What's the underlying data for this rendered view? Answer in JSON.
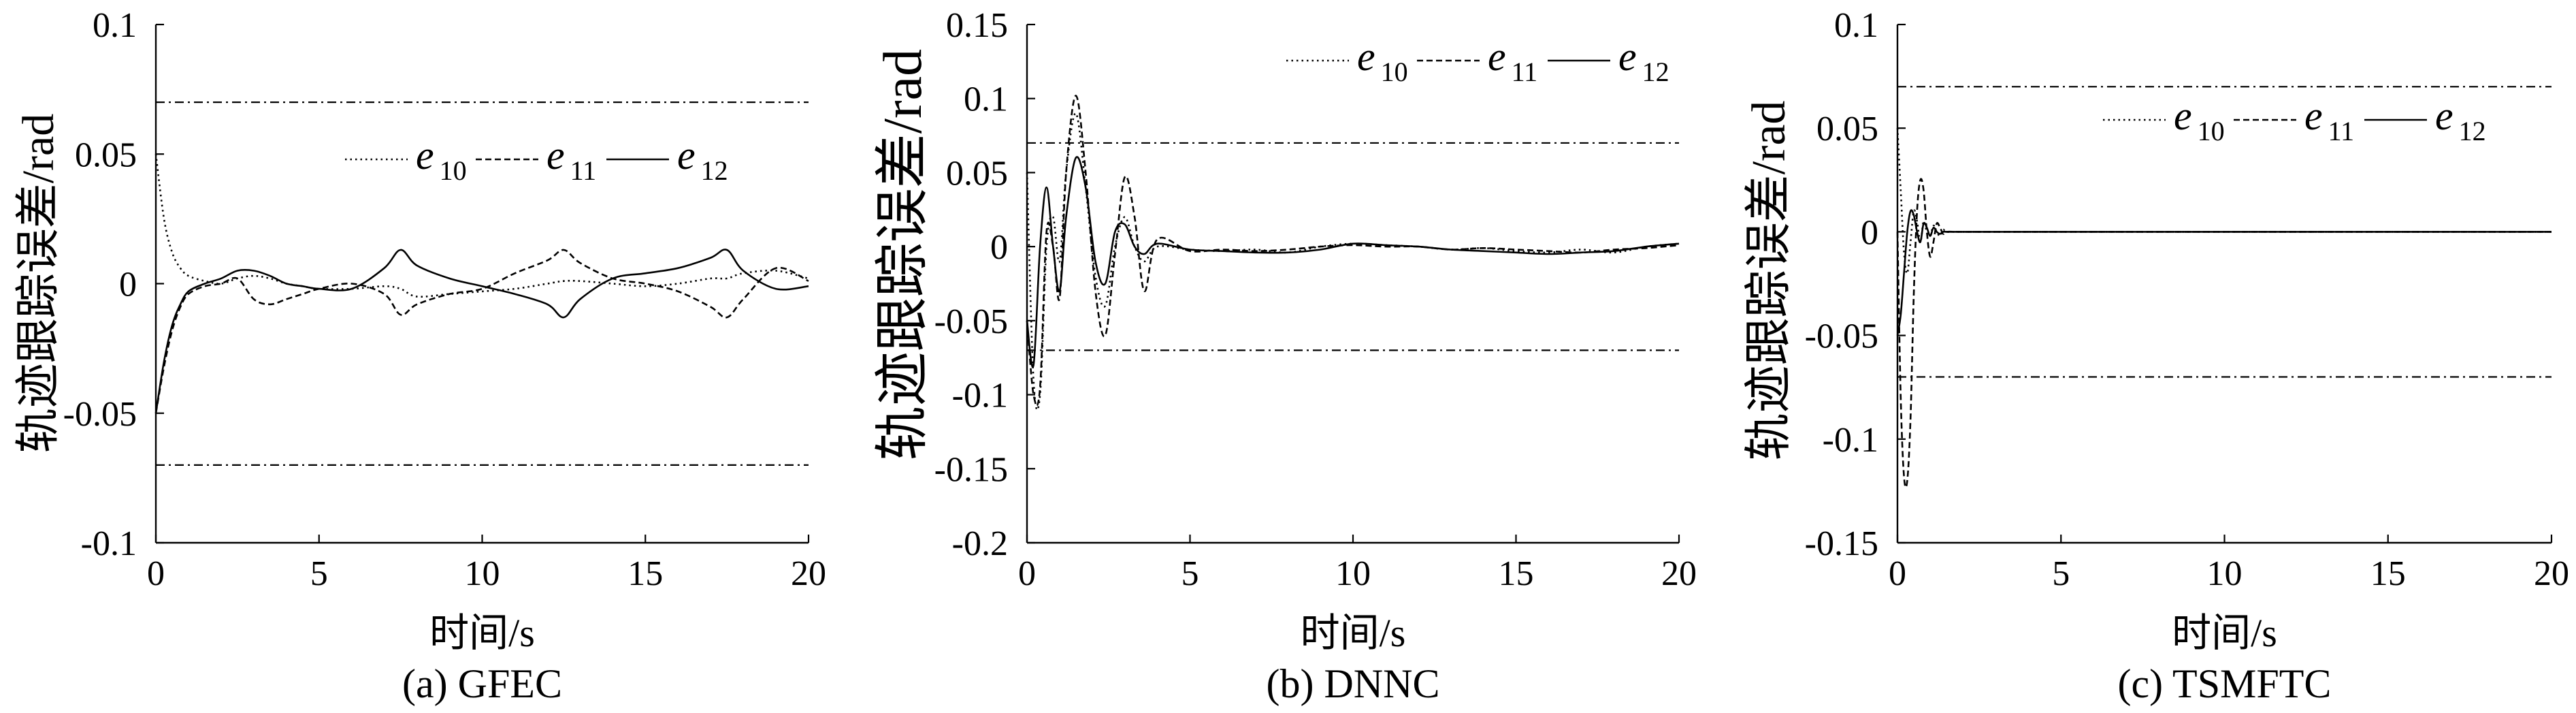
{
  "figure": {
    "background": "#ffffff",
    "ink": "#000000"
  },
  "chart_data": [
    {
      "type": "line",
      "caption": "(a) GFEC",
      "xlabel": "时间/s",
      "ylabel": "轨迹跟踪误差/rad",
      "xlim": [
        0,
        20
      ],
      "ylim": [
        -0.1,
        0.1
      ],
      "xticks": [
        0,
        5,
        10,
        15,
        20
      ],
      "yticks": [
        0.1,
        0.05,
        0,
        -0.05,
        -0.1
      ],
      "bound_lines": [
        0.07,
        -0.07
      ],
      "grid": false,
      "legend_placement": "upper-center",
      "x": [
        0,
        0.25,
        0.5,
        0.75,
        1,
        1.5,
        2,
        2.5,
        3,
        3.5,
        4,
        4.5,
        5,
        6,
        7,
        7.5,
        8,
        9,
        10,
        11,
        12,
        12.5,
        13,
        14,
        15,
        16,
        17,
        17.5,
        18,
        19,
        20
      ],
      "series": [
        {
          "name": "e10",
          "style": "dotted",
          "values": [
            0.05,
            0.025,
            0.012,
            0.006,
            0.003,
            0.001,
            0.0,
            0.002,
            0.003,
            0.002,
            0.0,
            -0.001,
            -0.002,
            -0.002,
            -0.001,
            -0.002,
            -0.005,
            -0.004,
            -0.003,
            -0.002,
            0.0,
            0.001,
            0.001,
            0.0,
            -0.001,
            0.0,
            0.002,
            0.002,
            0.004,
            0.005,
            0.002
          ]
        },
        {
          "name": "e11",
          "style": "dashed",
          "values": [
            -0.05,
            -0.032,
            -0.018,
            -0.009,
            -0.004,
            -0.001,
            0.0,
            0.002,
            -0.006,
            -0.008,
            -0.006,
            -0.004,
            -0.002,
            0.0,
            -0.004,
            -0.012,
            -0.008,
            -0.004,
            -0.002,
            0.004,
            0.009,
            0.013,
            0.008,
            0.002,
            0.0,
            -0.003,
            -0.009,
            -0.013,
            -0.006,
            0.006,
            0.001
          ]
        },
        {
          "name": "e12",
          "style": "solid",
          "values": [
            -0.05,
            -0.03,
            -0.016,
            -0.008,
            -0.003,
            0.0,
            0.002,
            0.005,
            0.005,
            0.003,
            0.0,
            -0.001,
            -0.002,
            -0.002,
            0.006,
            0.013,
            0.007,
            0.002,
            -0.001,
            -0.004,
            -0.008,
            -0.013,
            -0.006,
            0.002,
            0.004,
            0.006,
            0.01,
            0.013,
            0.005,
            -0.002,
            -0.001
          ]
        }
      ]
    },
    {
      "type": "line",
      "caption": "(b) DNNC",
      "xlabel": "时间/s",
      "ylabel": "轨迹跟踪误差/rad",
      "xlim": [
        0,
        20
      ],
      "ylim": [
        -0.2,
        0.15
      ],
      "xticks": [
        0,
        5,
        10,
        15,
        20
      ],
      "yticks": [
        0.15,
        0.1,
        0.05,
        0,
        -0.05,
        -0.1,
        -0.15,
        -0.2
      ],
      "bound_lines": [
        0.07,
        -0.07
      ],
      "grid": false,
      "legend_placement": "upper-right",
      "x": [
        0,
        0.2,
        0.4,
        0.6,
        0.8,
        1.0,
        1.2,
        1.5,
        1.8,
        2.1,
        2.4,
        2.7,
        3.0,
        3.3,
        3.6,
        4,
        5,
        6,
        7,
        8,
        9,
        10,
        11,
        12,
        13,
        14,
        15,
        16,
        17,
        18,
        19,
        20
      ],
      "series": [
        {
          "name": "e10",
          "style": "dotted",
          "values": [
            0.05,
            -0.09,
            -0.1,
            0.0,
            0.02,
            -0.01,
            0.05,
            0.09,
            0.04,
            -0.02,
            -0.04,
            0.0,
            0.02,
            0.0,
            -0.01,
            0.0,
            -0.002,
            -0.003,
            -0.002,
            -0.004,
            0.0,
            0.002,
            0.001,
            0.0,
            -0.002,
            -0.001,
            -0.003,
            -0.004,
            -0.002,
            -0.004,
            0.0,
            0.002
          ]
        },
        {
          "name": "e11",
          "style": "dashed",
          "values": [
            -0.05,
            -0.1,
            -0.095,
            0.01,
            0.0,
            -0.035,
            0.05,
            0.102,
            0.05,
            -0.03,
            -0.06,
            -0.005,
            0.047,
            0.02,
            -0.03,
            0.005,
            -0.003,
            -0.002,
            -0.003,
            -0.002,
            0.0,
            0.001,
            0.0,
            0.0,
            -0.002,
            -0.001,
            -0.002,
            -0.003,
            -0.004,
            -0.002,
            -0.001,
            0.001
          ]
        },
        {
          "name": "e12",
          "style": "solid",
          "values": [
            -0.05,
            -0.08,
            0.0,
            0.04,
            0.0,
            -0.03,
            0.02,
            0.06,
            0.04,
            -0.01,
            -0.025,
            0.01,
            0.015,
            0.0,
            -0.005,
            0.002,
            -0.002,
            -0.003,
            -0.004,
            -0.004,
            -0.002,
            0.002,
            0.001,
            0.0,
            -0.002,
            -0.003,
            -0.004,
            -0.005,
            -0.004,
            -0.003,
            0.0,
            0.002
          ]
        }
      ]
    },
    {
      "type": "line",
      "caption": "(c) TSMFTC",
      "xlabel": "时间/s",
      "ylabel": "轨迹跟踪误差/rad",
      "xlim": [
        0,
        20
      ],
      "ylim": [
        -0.15,
        0.1
      ],
      "xticks": [
        0,
        5,
        10,
        15,
        20
      ],
      "yticks": [
        0.1,
        0.05,
        0,
        -0.05,
        -0.1,
        -0.15
      ],
      "bound_lines": [
        0.07,
        -0.07
      ],
      "grid": false,
      "legend_placement": "upper-right",
      "x": [
        0,
        0.1,
        0.2,
        0.3,
        0.4,
        0.5,
        0.6,
        0.7,
        0.8,
        0.9,
        1.0,
        1.1,
        1.2,
        1.3,
        1.4,
        1.5,
        2,
        5,
        10,
        15,
        20
      ],
      "series": [
        {
          "name": "e10",
          "style": "dotted",
          "values": [
            0.05,
            0.02,
            -0.01,
            -0.02,
            -0.005,
            0.01,
            0.005,
            -0.005,
            0.005,
            0.0,
            -0.002,
            0.003,
            0.0,
            -0.002,
            0.001,
            0.0,
            0,
            0,
            0,
            0,
            0
          ]
        },
        {
          "name": "e11",
          "style": "dashed",
          "values": [
            0.0,
            -0.08,
            -0.118,
            -0.12,
            -0.09,
            -0.03,
            0.01,
            0.025,
            0.02,
            0.0,
            -0.012,
            -0.005,
            0.004,
            0.002,
            -0.001,
            0.0,
            0,
            0,
            0,
            0,
            0
          ]
        },
        {
          "name": "e12",
          "style": "solid",
          "values": [
            -0.05,
            -0.04,
            -0.02,
            0.0,
            0.01,
            0.008,
            0.0,
            -0.005,
            0.004,
            0.002,
            -0.002,
            0.002,
            0.0,
            -0.001,
            0.0,
            0.0,
            0,
            0,
            0,
            0,
            0
          ]
        }
      ]
    }
  ]
}
